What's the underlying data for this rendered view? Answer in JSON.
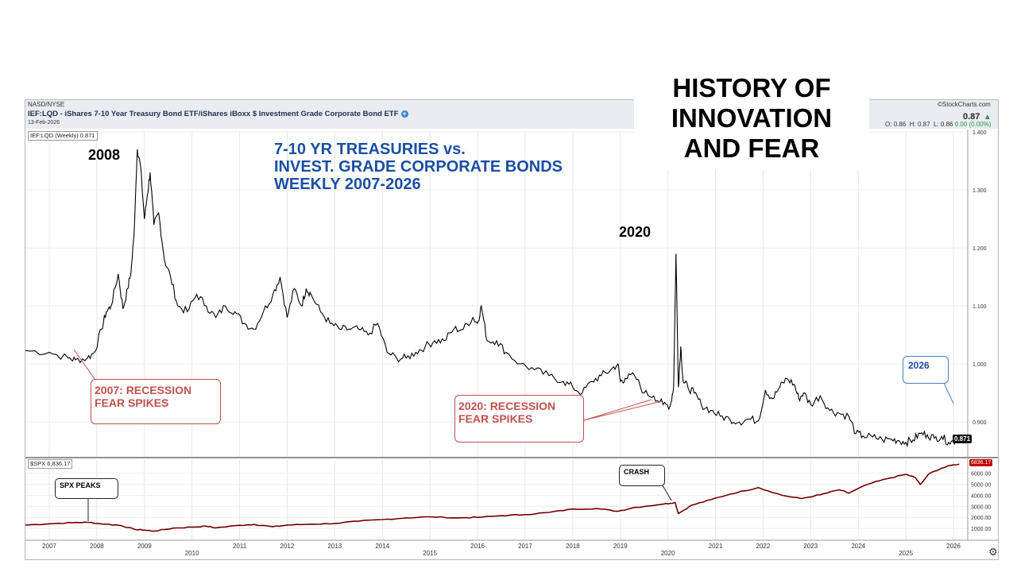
{
  "header": {
    "exchange": "NASD/NYSE",
    "symbol_title": "IEF:LQD - iShares 7-10 Year Treasury Bond ETF/iShares iBoxx $ Investment Grade Corporate Bond ETF",
    "plus_icon": "plus-circle-icon",
    "date": "13-Feb-2026",
    "brand": "©StockCharts.com",
    "last_price": "0.87",
    "ohlc": {
      "o_label": "O:",
      "o": "0.86",
      "h_label": "H:",
      "h": "0.87",
      "l_label": "L:",
      "l": "0.86",
      "change": "0.00 (0.00%)"
    }
  },
  "overlay": {
    "main_title": [
      "HISTORY OF",
      "INNOVATION",
      "AND FEAR"
    ],
    "subtitle": [
      "7-10 YR TREASURIES vs.",
      "INVEST. GRADE CORPORATE BONDS",
      "WEEKLY 2007-2026"
    ],
    "label_2008": "2008",
    "label_2020": "2020",
    "callout_2007": [
      "2007: RECESSION",
      "FEAR SPIKES"
    ],
    "callout_2020": [
      "2020: RECESSION",
      "FEAR SPIKES"
    ],
    "callout_2026": "2026",
    "callout_spx_peaks": "SPX PEAKS",
    "callout_crash": "CRASH"
  },
  "colors": {
    "accent_blue": "#1b4ea3",
    "callout_red": "#c0504d",
    "spx_line": "#c00000",
    "price_line": "#000000"
  },
  "chart_data": [
    {
      "type": "line",
      "legend": "IEF:LQD (Weekly) 0.871",
      "last_value_label": "0.871",
      "yticks": [
        0.9,
        1.0,
        1.1,
        1.2,
        1.3,
        1.4
      ],
      "ytick_labels": [
        "0.900",
        "1.000",
        "1.100",
        "1.200",
        "1.300",
        "1.400"
      ],
      "ylim": [
        0.84,
        1.4
      ],
      "xlim": [
        2006.5,
        2026.3
      ],
      "x": [
        2006.5,
        2007.0,
        2007.4,
        2007.55,
        2007.8,
        2007.95,
        2008.1,
        2008.2,
        2008.3,
        2008.45,
        2008.55,
        2008.65,
        2008.72,
        2008.78,
        2008.85,
        2008.92,
        2009.0,
        2009.06,
        2009.12,
        2009.2,
        2009.3,
        2009.42,
        2009.55,
        2009.7,
        2009.9,
        2010.1,
        2010.3,
        2010.5,
        2010.7,
        2010.9,
        2011.1,
        2011.3,
        2011.5,
        2011.7,
        2011.85,
        2012.0,
        2012.15,
        2012.3,
        2012.4,
        2012.5,
        2012.7,
        2012.9,
        2013.1,
        2013.3,
        2013.5,
        2013.7,
        2013.9,
        2014.1,
        2014.3,
        2014.5,
        2014.7,
        2014.9,
        2015.1,
        2015.3,
        2015.5,
        2015.7,
        2015.9,
        2016.0,
        2016.08,
        2016.2,
        2016.4,
        2016.6,
        2016.9,
        2017.2,
        2017.5,
        2017.8,
        2018.0,
        2018.2,
        2018.4,
        2018.6,
        2018.8,
        2018.95,
        2019.0,
        2019.1,
        2019.3,
        2019.5,
        2019.7,
        2019.9,
        2020.05,
        2020.12,
        2020.17,
        2020.22,
        2020.27,
        2020.32,
        2020.42,
        2020.55,
        2020.7,
        2020.9,
        2021.1,
        2021.3,
        2021.5,
        2021.7,
        2021.9,
        2022.05,
        2022.2,
        2022.35,
        2022.5,
        2022.65,
        2022.75,
        2022.85,
        2023.0,
        2023.2,
        2023.4,
        2023.6,
        2023.8,
        2023.95,
        2024.1,
        2024.3,
        2024.5,
        2024.7,
        2024.85,
        2025.0,
        2025.15,
        2025.3,
        2025.45,
        2025.6,
        2025.75,
        2025.9,
        2026.05,
        2026.12
      ],
      "y": [
        1.023,
        1.02,
        1.01,
        1.007,
        1.01,
        1.02,
        1.06,
        1.09,
        1.1,
        1.155,
        1.095,
        1.13,
        1.16,
        1.22,
        1.37,
        1.34,
        1.25,
        1.29,
        1.33,
        1.24,
        1.26,
        1.18,
        1.15,
        1.1,
        1.09,
        1.12,
        1.1,
        1.08,
        1.1,
        1.09,
        1.07,
        1.06,
        1.09,
        1.12,
        1.15,
        1.08,
        1.13,
        1.1,
        1.13,
        1.12,
        1.09,
        1.07,
        1.06,
        1.06,
        1.06,
        1.05,
        1.07,
        1.02,
        1.01,
        1.01,
        1.02,
        1.03,
        1.04,
        1.04,
        1.06,
        1.06,
        1.08,
        1.07,
        1.1,
        1.04,
        1.04,
        1.02,
        1.0,
        0.99,
        0.98,
        0.97,
        0.96,
        0.95,
        0.97,
        0.98,
        0.99,
        1.0,
        0.97,
        0.975,
        0.98,
        0.95,
        0.945,
        0.93,
        0.928,
        0.96,
        1.19,
        0.96,
        1.03,
        0.97,
        0.96,
        0.95,
        0.93,
        0.92,
        0.91,
        0.905,
        0.9,
        0.905,
        0.902,
        0.955,
        0.94,
        0.96,
        0.975,
        0.965,
        0.94,
        0.95,
        0.93,
        0.945,
        0.92,
        0.915,
        0.91,
        0.88,
        0.876,
        0.874,
        0.87,
        0.87,
        0.868,
        0.865,
        0.869,
        0.88,
        0.878,
        0.872,
        0.875,
        0.865,
        0.868,
        0.871
      ]
    },
    {
      "type": "line",
      "legend": "$SPX 6,836.17",
      "last_value_label": "6836.17",
      "yticks": [
        1000,
        2000,
        3000,
        4000,
        5000,
        6000
      ],
      "ytick_labels": [
        "1000.00",
        "2000.00",
        "3000.00",
        "4000.00",
        "5000.00",
        "6000.00"
      ],
      "ylim": [
        0,
        7200
      ],
      "xlim": [
        2006.5,
        2026.3
      ],
      "x": [
        2006.5,
        2007.0,
        2007.5,
        2007.8,
        2008.2,
        2008.5,
        2008.8,
        2009.0,
        2009.2,
        2009.6,
        2010.0,
        2010.3,
        2010.5,
        2011.0,
        2011.3,
        2011.7,
        2012.0,
        2012.5,
        2013.0,
        2013.5,
        2014.0,
        2014.5,
        2015.0,
        2015.6,
        2016.0,
        2016.5,
        2017.0,
        2017.5,
        2018.0,
        2018.5,
        2018.95,
        2019.3,
        2019.9,
        2020.15,
        2020.22,
        2020.5,
        2020.9,
        2021.3,
        2021.9,
        2022.4,
        2022.8,
        2023.2,
        2023.6,
        2023.8,
        2024.2,
        2024.6,
        2025.0,
        2025.2,
        2025.3,
        2025.5,
        2025.9,
        2026.12
      ],
      "y": [
        1300,
        1420,
        1520,
        1550,
        1380,
        1270,
        900,
        850,
        750,
        1020,
        1120,
        1200,
        1050,
        1280,
        1360,
        1150,
        1300,
        1380,
        1450,
        1650,
        1800,
        1950,
        2050,
        1950,
        2000,
        2150,
        2250,
        2450,
        2750,
        2800,
        2550,
        2900,
        3200,
        3350,
        2350,
        3100,
        3600,
        4100,
        4700,
        4000,
        3700,
        4050,
        4500,
        4200,
        5000,
        5500,
        5900,
        5600,
        4980,
        6000,
        6700,
        6836
      ]
    }
  ],
  "x_axis": {
    "years_top": [
      "2007",
      "2008",
      "2009",
      "2011",
      "2012",
      "2013",
      "2014",
      "2016",
      "2017",
      "2018",
      "2019",
      "2021",
      "2022",
      "2023",
      "2024",
      "2026"
    ],
    "years_bottom": [
      "2010",
      "2015",
      "2020",
      "2025"
    ]
  }
}
